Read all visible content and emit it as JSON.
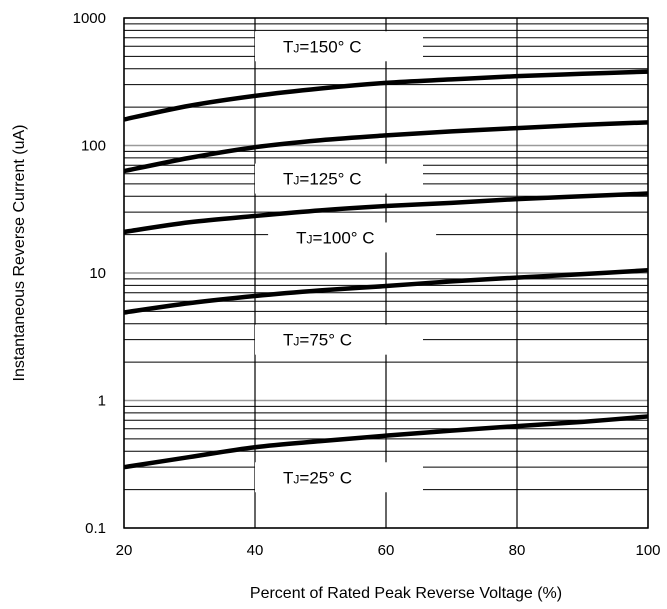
{
  "chart_data": {
    "type": "line",
    "title": "",
    "xlabel": "Percent of Rated Peak Reverse Voltage (%)",
    "ylabel": "Instantaneous Reverse Current (uA)",
    "xlim": [
      20,
      100
    ],
    "ylim": [
      0.1,
      1000
    ],
    "yscale": "log",
    "grid": true,
    "x_ticks": [
      "20",
      "40",
      "60",
      "80",
      "100"
    ],
    "y_ticks": [
      "0.1",
      "1",
      "10",
      "100",
      "1000"
    ],
    "series": [
      {
        "name": "TJ=150° C",
        "label_main": "T",
        "label_sub": "J",
        "label_rest": "=150° C",
        "label_at": [
          40,
          600
        ],
        "points": [
          [
            20,
            160
          ],
          [
            30,
            205
          ],
          [
            40,
            245
          ],
          [
            50,
            280
          ],
          [
            60,
            310
          ],
          [
            70,
            330
          ],
          [
            80,
            350
          ],
          [
            90,
            365
          ],
          [
            100,
            380
          ]
        ]
      },
      {
        "name": "TJ=125° C",
        "label_main": "T",
        "label_sub": "J",
        "label_rest": "=125° C",
        "label_at": [
          40,
          55
        ],
        "points": [
          [
            20,
            63
          ],
          [
            30,
            80
          ],
          [
            40,
            97
          ],
          [
            50,
            110
          ],
          [
            60,
            120
          ],
          [
            70,
            129
          ],
          [
            80,
            137
          ],
          [
            90,
            145
          ],
          [
            100,
            152
          ]
        ]
      },
      {
        "name": "TJ=100° C",
        "label_main": "T",
        "label_sub": "J",
        "label_rest": "=100° C",
        "label_at": [
          42,
          19
        ],
        "points": [
          [
            20,
            21
          ],
          [
            30,
            25
          ],
          [
            40,
            28
          ],
          [
            50,
            31
          ],
          [
            60,
            33.5
          ],
          [
            70,
            35.5
          ],
          [
            80,
            38
          ],
          [
            90,
            40
          ],
          [
            100,
            42
          ]
        ]
      },
      {
        "name": "TJ=75° C",
        "label_main": "T",
        "label_sub": "J",
        "label_rest": "=75° C",
        "label_at": [
          40,
          3.0
        ],
        "points": [
          [
            20,
            4.9
          ],
          [
            30,
            5.8
          ],
          [
            40,
            6.6
          ],
          [
            50,
            7.3
          ],
          [
            60,
            7.9
          ],
          [
            70,
            8.6
          ],
          [
            80,
            9.2
          ],
          [
            90,
            9.8
          ],
          [
            100,
            10.5
          ]
        ]
      },
      {
        "name": "TJ=25° C",
        "label_main": "T",
        "label_sub": "J",
        "label_rest": "=25° C",
        "label_at": [
          40,
          0.25
        ],
        "points": [
          [
            20,
            0.3
          ],
          [
            30,
            0.36
          ],
          [
            40,
            0.43
          ],
          [
            50,
            0.48
          ],
          [
            60,
            0.53
          ],
          [
            70,
            0.58
          ],
          [
            80,
            0.63
          ],
          [
            90,
            0.68
          ],
          [
            100,
            0.75
          ]
        ]
      }
    ]
  }
}
